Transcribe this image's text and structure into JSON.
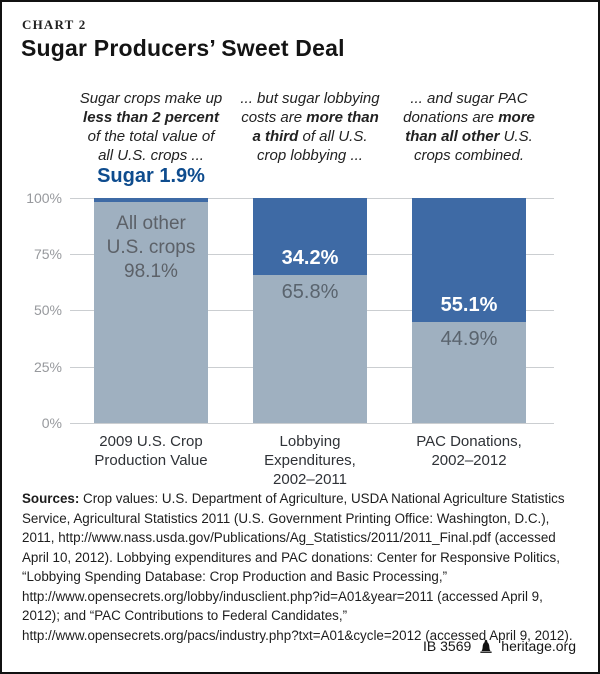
{
  "header": {
    "kicker": "CHART 2",
    "title": "Sugar Producers’ Sweet Deal"
  },
  "annotations": [
    {
      "lines": [
        [
          {
            "t": "Sugar crops make up"
          }
        ],
        [
          {
            "t": "less than 2 percent",
            "b": true
          }
        ],
        [
          {
            "t": "of the total value of"
          }
        ],
        [
          {
            "t": "all U.S. crops ..."
          }
        ]
      ]
    },
    {
      "lines": [
        [
          {
            "t": "... but sugar lobbying"
          }
        ],
        [
          {
            "t": "costs are "
          },
          {
            "t": "more than",
            "b": true
          }
        ],
        [
          {
            "t": "a third",
            "b": true
          },
          {
            "t": " of all U.S."
          }
        ],
        [
          {
            "t": "crop lobbying ..."
          }
        ]
      ]
    },
    {
      "lines": [
        [
          {
            "t": "... and sugar PAC"
          }
        ],
        [
          {
            "t": "donations are "
          },
          {
            "t": "more",
            "b": true
          }
        ],
        [
          {
            "t": "than all other",
            "b": true
          },
          {
            "t": " U.S."
          }
        ],
        [
          {
            "t": "crops combined."
          }
        ]
      ]
    }
  ],
  "callout": {
    "text": "Sugar 1.9%",
    "color": "#0e4c8e"
  },
  "chart_data": {
    "type": "bar",
    "subtype": "stacked-percent",
    "title": "Sugar Producers’ Sweet Deal",
    "categories": [
      "2009 U.S. Crop Production Value",
      "Lobbying Expenditures, 2002–2011",
      "PAC Donations, 2002–2012"
    ],
    "series": [
      {
        "name": "Sugar",
        "color": "#3e6aa5",
        "values": [
          1.9,
          34.2,
          55.1
        ]
      },
      {
        "name": "All other U.S. crops",
        "color": "#9fb0c0",
        "values": [
          98.1,
          65.8,
          44.9
        ]
      }
    ],
    "xlabel": "",
    "ylabel": "",
    "ylim": [
      0,
      100
    ],
    "y_ticks": [
      "100%",
      "75%",
      "50%",
      "25%",
      "0%"
    ],
    "grid": true,
    "legend_position": "labels-inside-bars"
  },
  "bar_labels": {
    "bar1_gray": "All other\nU.S. crops\n98.1%",
    "bar2_blue": "34.2%",
    "bar2_gray": "65.8%",
    "bar3_blue": "55.1%",
    "bar3_gray": "44.9%"
  },
  "category_labels": [
    "2009 U.S. Crop\nProduction Value",
    "Lobbying\nExpenditures,\n2002–2011",
    "PAC Donations,\n2002–2012"
  ],
  "sources": {
    "label": "Sources:",
    "text": " Crop values: U.S. Department of Agriculture, USDA National Agriculture Statistics Service, Agricultural Statistics 2011 (U.S. Government Printing Office: Washington, D.C.), 2011, http://www.nass.usda.gov/Publications/Ag_Statistics/2011/2011_Final.pdf (accessed April 10, 2012). Lobbying expenditures and PAC donations: Center for Responsive Politics, “Lobbying Spending Database: Crop Production and Basic Processing,” http://www.opensecrets.org/lobby/indusclient.php?id=A01&year=2011 (accessed April 9, 2012); and “PAC Contributions to Federal Candidates,” http://www.opensecrets.org/pacs/industry.php?txt=A01&cycle=2012 (accessed April 9, 2012)."
  },
  "footer": {
    "report_id": "IB 3569",
    "site": "heritage.org",
    "logo": "liberty-bell-icon"
  }
}
